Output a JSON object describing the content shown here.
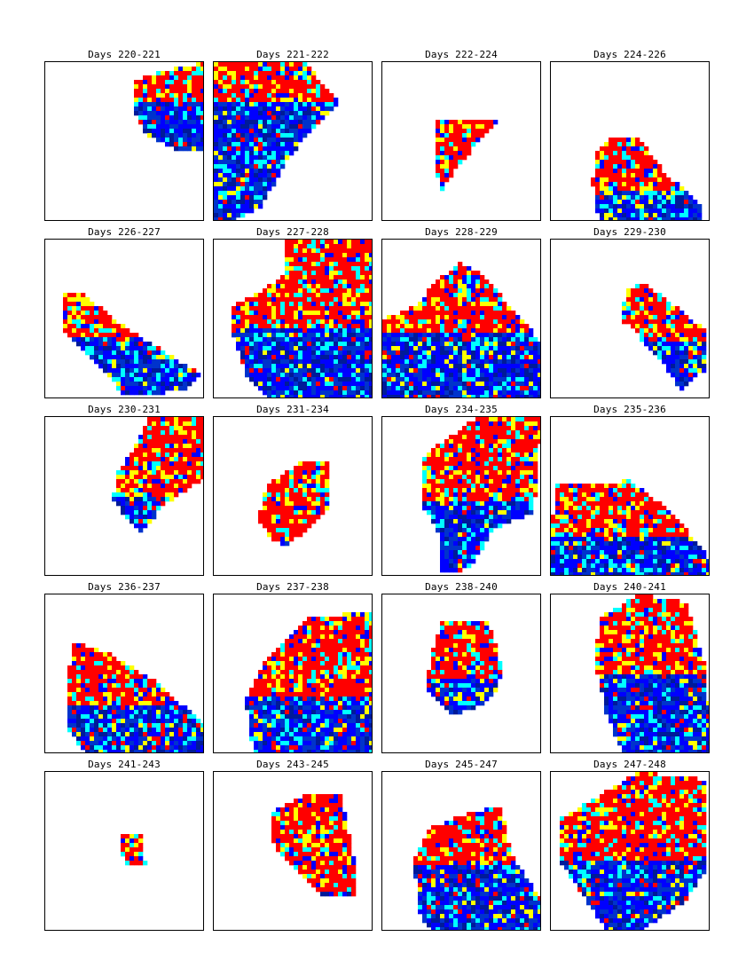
{
  "palette": {
    "red": "#ff0000",
    "yellow": "#ffff00",
    "cyan": "#00ffff",
    "blue": "#0000ff",
    "mid_blue": "#0033cc",
    "dark_blue": "#001a99"
  },
  "chart_data": {
    "type": "heatmap",
    "layout": "5x4 grid of small multiples",
    "grid_cells": 36,
    "panels": [
      {
        "title": "Days 220-221",
        "shape": [
          [
            0.55,
            0.12
          ],
          [
            0.76,
            0.05
          ],
          [
            1.0,
            0.0
          ],
          [
            1.0,
            0.55
          ],
          [
            0.82,
            0.55
          ],
          [
            0.62,
            0.45
          ],
          [
            0.56,
            0.3
          ]
        ],
        "red_band": 0.45
      },
      {
        "title": "Days 221-222",
        "shape": [
          [
            0.0,
            0.0
          ],
          [
            0.57,
            0.0
          ],
          [
            0.78,
            0.25
          ],
          [
            0.48,
            0.58
          ],
          [
            0.3,
            0.9
          ],
          [
            0.12,
            1.0
          ],
          [
            0.0,
            1.0
          ]
        ],
        "red_band": 0.25
      },
      {
        "title": "Days 222-224",
        "shape": [
          [
            0.33,
            0.35
          ],
          [
            0.74,
            0.35
          ],
          [
            0.47,
            0.65
          ],
          [
            0.37,
            0.8
          ],
          [
            0.33,
            0.65
          ]
        ],
        "red_band": 0.9
      },
      {
        "title": "Days 224-226",
        "shape": [
          [
            0.28,
            0.55
          ],
          [
            0.38,
            0.48
          ],
          [
            0.55,
            0.48
          ],
          [
            0.72,
            0.7
          ],
          [
            0.95,
            0.9
          ],
          [
            0.95,
            1.0
          ],
          [
            0.3,
            1.0
          ],
          [
            0.26,
            0.75
          ]
        ],
        "red_band": 0.6
      },
      {
        "title": "Days 226-227",
        "shape": [
          [
            0.1,
            0.35
          ],
          [
            0.22,
            0.33
          ],
          [
            0.5,
            0.55
          ],
          [
            0.98,
            0.85
          ],
          [
            0.85,
            0.95
          ],
          [
            0.5,
            0.98
          ],
          [
            0.3,
            0.75
          ],
          [
            0.1,
            0.55
          ]
        ],
        "red_band": 0.45
      },
      {
        "title": "Days 227-228",
        "shape": [
          [
            0.45,
            0.0
          ],
          [
            1.0,
            0.0
          ],
          [
            1.0,
            1.0
          ],
          [
            0.35,
            1.0
          ],
          [
            0.2,
            0.85
          ],
          [
            0.12,
            0.6
          ],
          [
            0.1,
            0.42
          ],
          [
            0.3,
            0.33
          ],
          [
            0.45,
            0.2
          ]
        ],
        "red_band": 0.55
      },
      {
        "title": "Days 228-229",
        "shape": [
          [
            0.0,
            0.5
          ],
          [
            0.2,
            0.42
          ],
          [
            0.35,
            0.25
          ],
          [
            0.48,
            0.15
          ],
          [
            0.6,
            0.2
          ],
          [
            0.88,
            0.5
          ],
          [
            1.0,
            0.65
          ],
          [
            1.0,
            1.0
          ],
          [
            0.0,
            1.0
          ]
        ],
        "red_band": 0.5
      },
      {
        "title": "Days 229-230",
        "shape": [
          [
            0.48,
            0.3
          ],
          [
            0.6,
            0.28
          ],
          [
            0.92,
            0.53
          ],
          [
            0.98,
            0.58
          ],
          [
            0.98,
            0.8
          ],
          [
            0.82,
            0.95
          ],
          [
            0.68,
            0.75
          ],
          [
            0.5,
            0.55
          ],
          [
            0.43,
            0.5
          ]
        ],
        "red_band": 0.55
      },
      {
        "title": "Days 230-231",
        "shape": [
          [
            0.65,
            0.0
          ],
          [
            1.0,
            0.0
          ],
          [
            1.0,
            0.38
          ],
          [
            0.75,
            0.55
          ],
          [
            0.6,
            0.72
          ],
          [
            0.55,
            0.68
          ],
          [
            0.42,
            0.52
          ],
          [
            0.45,
            0.35
          ],
          [
            0.55,
            0.2
          ]
        ],
        "red_band": 0.7
      },
      {
        "title": "Days 231-234",
        "shape": [
          [
            0.55,
            0.28
          ],
          [
            0.72,
            0.28
          ],
          [
            0.72,
            0.58
          ],
          [
            0.45,
            0.82
          ],
          [
            0.35,
            0.75
          ],
          [
            0.28,
            0.65
          ],
          [
            0.33,
            0.42
          ],
          [
            0.45,
            0.35
          ]
        ],
        "red_band": 0.9
      },
      {
        "title": "Days 234-235",
        "shape": [
          [
            0.25,
            0.25
          ],
          [
            0.6,
            0.0
          ],
          [
            1.0,
            0.0
          ],
          [
            0.95,
            0.6
          ],
          [
            0.7,
            0.7
          ],
          [
            0.55,
            0.95
          ],
          [
            0.35,
            0.98
          ],
          [
            0.35,
            0.72
          ],
          [
            0.25,
            0.55
          ]
        ],
        "red_band": 0.55
      },
      {
        "title": "Days 235-236",
        "shape": [
          [
            0.02,
            0.42
          ],
          [
            0.5,
            0.4
          ],
          [
            0.7,
            0.55
          ],
          [
            0.98,
            0.85
          ],
          [
            1.0,
            1.0
          ],
          [
            0.0,
            1.0
          ]
        ],
        "red_band": 0.6
      },
      {
        "title": "Days 236-237",
        "shape": [
          [
            0.18,
            0.3
          ],
          [
            0.42,
            0.38
          ],
          [
            0.7,
            0.55
          ],
          [
            1.0,
            0.82
          ],
          [
            1.0,
            1.0
          ],
          [
            0.25,
            1.0
          ],
          [
            0.15,
            0.85
          ],
          [
            0.15,
            0.45
          ]
        ],
        "red_band": 0.55
      },
      {
        "title": "Days 237-238",
        "shape": [
          [
            0.6,
            0.15
          ],
          [
            1.0,
            0.1
          ],
          [
            1.0,
            1.0
          ],
          [
            0.25,
            1.0
          ],
          [
            0.2,
            0.65
          ],
          [
            0.3,
            0.45
          ],
          [
            0.45,
            0.3
          ]
        ],
        "red_band": 0.6
      },
      {
        "title": "Days 238-240",
        "shape": [
          [
            0.37,
            0.18
          ],
          [
            0.67,
            0.18
          ],
          [
            0.75,
            0.45
          ],
          [
            0.72,
            0.6
          ],
          [
            0.58,
            0.72
          ],
          [
            0.42,
            0.75
          ],
          [
            0.28,
            0.6
          ],
          [
            0.3,
            0.38
          ]
        ],
        "red_band": 0.6
      },
      {
        "title": "Days 240-241",
        "shape": [
          [
            0.3,
            0.15
          ],
          [
            0.55,
            0.0
          ],
          [
            0.85,
            0.05
          ],
          [
            0.98,
            0.5
          ],
          [
            1.0,
            1.0
          ],
          [
            0.45,
            1.0
          ],
          [
            0.35,
            0.75
          ],
          [
            0.28,
            0.45
          ]
        ],
        "red_band": 0.5
      },
      {
        "title": "Days 241-243",
        "shape": [
          [
            0.47,
            0.4
          ],
          [
            0.6,
            0.4
          ],
          [
            0.63,
            0.57
          ],
          [
            0.52,
            0.6
          ],
          [
            0.48,
            0.5
          ]
        ],
        "red_band": 1.0
      },
      {
        "title": "Days 243-245",
        "shape": [
          [
            0.35,
            0.25
          ],
          [
            0.55,
            0.15
          ],
          [
            0.8,
            0.15
          ],
          [
            0.88,
            0.55
          ],
          [
            0.9,
            0.78
          ],
          [
            0.67,
            0.78
          ],
          [
            0.5,
            0.6
          ],
          [
            0.37,
            0.45
          ]
        ],
        "red_band": 0.95
      },
      {
        "title": "Days 245-247",
        "shape": [
          [
            0.2,
            0.55
          ],
          [
            0.3,
            0.35
          ],
          [
            0.55,
            0.25
          ],
          [
            0.75,
            0.22
          ],
          [
            0.8,
            0.5
          ],
          [
            1.0,
            0.8
          ],
          [
            1.0,
            1.0
          ],
          [
            0.3,
            1.0
          ],
          [
            0.22,
            0.85
          ]
        ],
        "red_band": 0.45
      },
      {
        "title": "Days 247-248",
        "shape": [
          [
            0.05,
            0.3
          ],
          [
            0.3,
            0.15
          ],
          [
            0.55,
            0.0
          ],
          [
            0.98,
            0.05
          ],
          [
            0.98,
            0.6
          ],
          [
            0.85,
            0.8
          ],
          [
            0.55,
            1.0
          ],
          [
            0.35,
            1.0
          ],
          [
            0.15,
            0.7
          ],
          [
            0.05,
            0.55
          ]
        ],
        "red_band": 0.55
      }
    ]
  }
}
